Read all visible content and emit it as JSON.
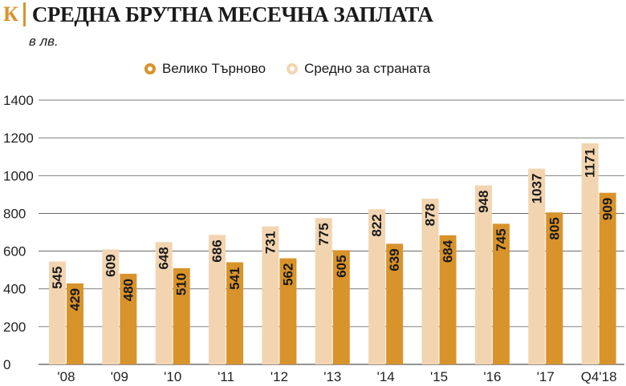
{
  "header": {
    "logo": "К",
    "title": "СРЕДНА БРУТНА МЕСЕЧНА ЗАПЛАТА",
    "unit": "в лв."
  },
  "colors": {
    "national": "#f2d5b0",
    "town": "#d9932b",
    "grid": "#555555"
  },
  "chart_data": {
    "type": "bar",
    "title": "СРЕДНА БРУТНА МЕСЕЧНА ЗАПЛАТА",
    "subtitle": "в лв.",
    "categories": [
      "'08",
      "'09",
      "'10",
      "'11",
      "'12",
      "'13",
      "'14",
      "'15",
      "'16",
      "'17",
      "Q4'18"
    ],
    "series": [
      {
        "name": "Средно за страната",
        "values": [
          545,
          609,
          648,
          686,
          731,
          775,
          822,
          878,
          948,
          1037,
          1171
        ]
      },
      {
        "name": "Велико Търново",
        "values": [
          429,
          480,
          510,
          541,
          562,
          605,
          639,
          684,
          745,
          805,
          909
        ]
      }
    ],
    "legend_order": [
      "Велико Търново",
      "Средно за страната"
    ],
    "ylim": [
      0,
      1400
    ],
    "yticks": [
      0,
      200,
      400,
      600,
      800,
      1000,
      1200,
      1400
    ],
    "grid": true,
    "legend_position": "top-center",
    "data_labels": "rotated-inside-bars"
  }
}
